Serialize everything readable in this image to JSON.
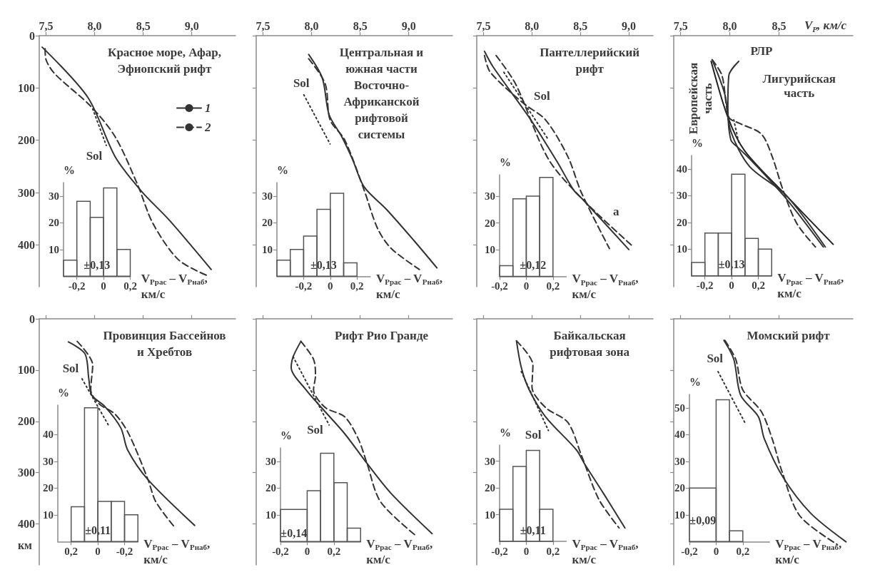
{
  "chart_data": [
    {
      "type": "line",
      "title": "Красное море, Афар,\nЭфиопский рифт",
      "xlim": [
        7.43,
        9.45
      ],
      "xticks": [
        {
          "value": 7.5,
          "label": "7,5"
        },
        {
          "value": 8,
          "label": "8,0"
        },
        {
          "value": 8.5,
          "label": "8,5"
        },
        {
          "value": 9,
          "label": "9,0"
        }
      ],
      "ylim": [
        480,
        0
      ],
      "yticks": [
        0,
        100,
        200,
        300,
        400
      ],
      "legend": "right",
      "series": [
        {
          "name": "1",
          "color": "#333333",
          "line_style": "solid",
          "x": [
            7.46,
            7.93,
            8.21,
            8.48,
            8.77,
            9.2
          ],
          "values": [
            22,
            118,
            231,
            297,
            353,
            447
          ]
        },
        {
          "name": "2",
          "color": "#333333",
          "line_style": "dashed",
          "x": [
            7.49,
            7.5,
            7.59,
            7.96,
            8.21,
            8.44,
            8.6,
            8.86,
            9.15
          ],
          "values": [
            25,
            46,
            73,
            135,
            193,
            284,
            359,
            428,
            458
          ]
        },
        {
          "color": "#333333",
          "line_style": "dotted",
          "x": [
            7.98,
            8.12
          ],
          "values": [
            140,
            210
          ]
        }
      ],
      "annotations": [
        "Sol"
      ]
    },
    {
      "type": "histogram",
      "bins": [
        -0.3,
        -0.2,
        -0.1,
        0,
        0.1,
        0.2
      ],
      "values": [
        6,
        28,
        22,
        33,
        10
      ],
      "color": "#555555",
      "xlim": [
        -0.3,
        0.2
      ],
      "xticks": [
        {
          "value": -0.2,
          "label": "-0,2"
        },
        0,
        {
          "value": 0.2,
          "label": "0,2"
        }
      ],
      "ylim": [
        0,
        35
      ],
      "yticks": [
        10,
        20,
        30
      ],
      "ylabel": "%",
      "xlabel": "V$_{Pрас}$ – V$_{Pнаб}$,\nкм/с",
      "annotations": [
        "±0,13"
      ]
    },
    {
      "type": "line",
      "title": "Центральная и\nюжная части\nВосточно-\nАфриканской\nрифтовой\nсистемы",
      "xlim": [
        7.43,
        9.45
      ],
      "xticks": [
        {
          "value": 7.5,
          "label": "7,5"
        },
        {
          "value": 8,
          "label": "8,0"
        },
        {
          "value": 8.5,
          "label": "8,5"
        },
        {
          "value": 9,
          "label": "9,0"
        }
      ],
      "ylim": [
        480,
        0
      ],
      "yticks": [
        0,
        100,
        200,
        300,
        400
      ],
      "tick_labels": "x",
      "series": [
        {
          "color": "#333333",
          "line_style": "solid",
          "x": [
            7.97,
            8.11,
            8.18,
            8.31,
            8.42,
            8.54,
            8.77,
            9.05,
            9.29
          ],
          "values": [
            36,
            81,
            151,
            193,
            236,
            289,
            332,
            391,
            444
          ]
        },
        {
          "color": "#333333",
          "line_style": "dashed",
          "x": [
            7.97,
            8.14,
            8.19,
            8.34,
            8.54,
            8.68,
            8.82,
            9.11
          ],
          "values": [
            44,
            92,
            161,
            199,
            295,
            369,
            407,
            447
          ]
        },
        {
          "color": "#333333",
          "line_style": "dotted",
          "x": [
            7.92,
            8.19
          ],
          "values": [
            113,
            207
          ]
        }
      ],
      "annotations": [
        "Sol"
      ]
    },
    {
      "type": "histogram",
      "bins": [
        -0.4,
        -0.3,
        -0.2,
        -0.1,
        0,
        0.1,
        0.2
      ],
      "values": [
        6,
        10,
        15,
        25,
        31,
        5
      ],
      "color": "#555555",
      "xlim": [
        -0.4,
        0.3
      ],
      "xticks": [
        {
          "value": -0.2,
          "label": "-0,2"
        },
        0,
        {
          "value": 0.2,
          "label": "0,2"
        }
      ],
      "ylim": [
        0,
        35
      ],
      "yticks": [
        10,
        20,
        30
      ],
      "ylabel": "%",
      "xlabel": "V$_{Pрас}$ – V$_{Pнаб}$,\nкм/с",
      "annotations": [
        "±0,13"
      ]
    },
    {
      "type": "line",
      "title": "Пантеллерийский\nрифт",
      "xlim": [
        7.43,
        9.25
      ],
      "xticks": [
        {
          "value": 7.5,
          "label": "7,5"
        },
        {
          "value": 8,
          "label": "8,0"
        },
        {
          "value": 8.5,
          "label": "8,5"
        },
        {
          "value": 9,
          "label": "9,0"
        }
      ],
      "ylim": [
        480,
        0
      ],
      "yticks": [
        0,
        100,
        200,
        300,
        400
      ],
      "tick_labels": "x",
      "series": [
        {
          "color": "#333333",
          "line_style": "solid",
          "x": [
            7.51,
            7.6,
            7.97,
            8.26,
            8.43,
            8.54,
            9.0
          ],
          "values": [
            30,
            60,
            156,
            241,
            295,
            316,
            409
          ]
        },
        {
          "color": "#333333",
          "line_style": "dashed",
          "x": [
            7.51,
            7.57,
            7.91,
            8.14,
            8.37,
            8.51,
            8.8
          ],
          "values": [
            38,
            70,
            129,
            161,
            231,
            300,
            407
          ]
        },
        {
          "color": "#333333",
          "line_style": "dashed",
          "x": [
            7.63,
            7.83,
            8.17,
            8.54,
            9.03
          ],
          "values": [
            38,
            92,
            236,
            316,
            401
          ]
        },
        {
          "color": "#333333",
          "line_style": "dotted",
          "x": [
            7.71,
            8.17
          ],
          "values": [
            70,
            199
          ]
        }
      ],
      "annotations": [
        "Sol",
        "a"
      ]
    },
    {
      "type": "histogram",
      "bins": [
        -0.2,
        -0.1,
        0,
        0.1,
        0.2
      ],
      "values": [
        4,
        29,
        30,
        37
      ],
      "color": "#555555",
      "xlim": [
        -0.2,
        0.3
      ],
      "xticks": [
        {
          "value": -0.2,
          "label": "-0,2"
        },
        0,
        {
          "value": 0.2,
          "label": "0,2"
        }
      ],
      "ylim": [
        0,
        38
      ],
      "yticks": [
        10,
        20,
        30
      ],
      "ylabel": "%",
      "xlabel": "V$_{Pрас}$ – V$_{Pнаб}$,\nкм/с",
      "annotations": [
        "±0,12"
      ]
    },
    {
      "type": "line",
      "xlabel": "V$_{P}$, км/с",
      "xlim": [
        7.43,
        9.25
      ],
      "xticks": [
        {
          "value": 7.5,
          "label": "7,5"
        },
        {
          "value": 8,
          "label": "8,0"
        },
        {
          "value": 8.5,
          "label": "8,5"
        }
      ],
      "ylim": [
        480,
        0
      ],
      "yticks": [
        0,
        100,
        200,
        300,
        400
      ],
      "tick_labels": "x",
      "series": [
        {
          "color": "#222222",
          "line_style": "solid",
          "x": [
            7.81,
            7.98,
            8.15,
            8.57,
            9.05
          ],
          "values": [
            49,
            156,
            220,
            305,
            399
          ]
        },
        {
          "color": "#333333",
          "line_style": "solid",
          "x": [
            8.09,
            7.99,
            7.98,
            8.01,
            8.09,
            8.23,
            8.57,
            8.95
          ],
          "values": [
            49,
            76,
            135,
            199,
            215,
            241,
            311,
            404
          ]
        },
        {
          "color": "#333333",
          "line_style": "solid",
          "x": [
            7.82,
            7.95,
            8.01,
            8.2,
            8.57,
            8.97
          ],
          "values": [
            46,
            113,
            183,
            250,
            305,
            404
          ]
        },
        {
          "color": "#333333",
          "line_style": "dashed",
          "x": [
            7.82,
            7.92,
            7.99,
            8.09,
            8.32,
            8.43,
            8.54,
            8.68,
            8.87
          ],
          "values": [
            46,
            76,
            156,
            167,
            188,
            231,
            295,
            359,
            404
          ]
        },
        {
          "color": "#333333",
          "line_style": "dotted",
          "x": [
            8.04,
            8.09
          ],
          "values": [
            161,
            204
          ]
        }
      ],
      "annotations": [
        "РЛР",
        "Лигурийская\nчасть",
        "Европейская\nчасть"
      ]
    },
    {
      "type": "histogram",
      "bins": [
        -0.3,
        -0.2,
        -0.1,
        0,
        0.1,
        0.2,
        0.3
      ],
      "values": [
        5,
        16,
        16,
        38,
        14,
        10
      ],
      "color": "#555555",
      "xlim": [
        -0.3,
        0.3
      ],
      "xticks": [
        {
          "value": -0.2,
          "label": "-0,2"
        },
        0,
        {
          "value": 0.2,
          "label": "0,2"
        }
      ],
      "ylim": [
        0,
        45
      ],
      "yticks": [
        10,
        20,
        30,
        40
      ],
      "ylabel": "%",
      "xlabel": "V$_{Pрас}$ – V$_{Pнаб}$,\nкм/с",
      "annotations": [
        "±0,13"
      ]
    },
    {
      "type": "line",
      "title": "Провинция Бассейнов\nи Хребтов",
      "ylabel": "км",
      "xlim": [
        7.43,
        9.45
      ],
      "xticks": [
        7.5,
        8,
        8.5,
        9
      ],
      "ylim": [
        480,
        0
      ],
      "yticks": [
        0,
        100,
        200,
        300,
        400
      ],
      "tick_labels": "y",
      "series": [
        {
          "color": "#333333",
          "line_style": "solid",
          "x": [
            7.73,
            7.9,
            7.94,
            7.97,
            8.1,
            8.27,
            8.34,
            8.55,
            9.03
          ],
          "values": [
            45,
            68,
            117,
            149,
            170,
            213,
            256,
            314,
            403
          ]
        },
        {
          "color": "#333333",
          "line_style": "dashed",
          "x": [
            7.82,
            7.98,
            7.96,
            8.04,
            8.21,
            8.35,
            8.55,
            8.63,
            8.83
          ],
          "values": [
            44,
            90,
            138,
            165,
            186,
            224,
            314,
            357,
            408
          ]
        },
        {
          "color": "#333333",
          "line_style": "dotted",
          "x": [
            7.87,
            8.15
          ],
          "values": [
            117,
            210
          ]
        }
      ],
      "annotations": [
        "Sol"
      ]
    },
    {
      "type": "histogram",
      "bins": [
        -0.3,
        -0.2,
        -0.1,
        0,
        0.1,
        0.2
      ],
      "values": [
        10,
        15,
        15,
        50,
        13
      ],
      "color": "#555555",
      "xlim": [
        0.3,
        -0.3
      ],
      "xticks": [
        {
          "value": 0.2,
          "label": "0,2"
        },
        0,
        {
          "value": -0.2,
          "label": "-0,2"
        }
      ],
      "ylim": [
        0,
        51
      ],
      "yticks": [
        10,
        20,
        30,
        40
      ],
      "ylabel": "%",
      "xlabel": "V$_{Pрас}$ – V$_{Pнаб}$,\nкм/с",
      "annotations": [
        "±0,11"
      ]
    },
    {
      "type": "line",
      "title": "Рифт Рио Гранде",
      "xlim": [
        7.43,
        9.45
      ],
      "xticks": [
        7.5,
        8,
        8.5,
        9
      ],
      "ylim": [
        480,
        0
      ],
      "yticks": [
        0,
        100,
        200,
        300,
        400
      ],
      "tick_labels": false,
      "series": [
        {
          "color": "#333333",
          "line_style": "solid",
          "x": [
            7.89,
            7.81,
            7.79,
            7.94,
            8.11,
            8.34,
            8.57,
            8.82,
            9.24
          ],
          "values": [
            44,
            74,
            95,
            138,
            175,
            224,
            282,
            341,
            419
          ]
        },
        {
          "color": "#333333",
          "line_style": "dashed",
          "x": [
            7.89,
            8.02,
            8.04,
            8.02,
            8.14,
            8.34,
            8.48,
            8.57,
            8.71,
            9.08
          ],
          "values": [
            44,
            79,
            111,
            138,
            173,
            191,
            234,
            282,
            357,
            424
          ]
        },
        {
          "color": "#333333",
          "line_style": "dotted",
          "x": [
            7.81,
            8.18
          ],
          "values": [
            74,
            207
          ]
        }
      ],
      "annotations": [
        "Sol"
      ]
    },
    {
      "type": "histogram",
      "bins": [
        -0.2,
        0,
        0.1,
        0.2,
        0.3,
        0.4
      ],
      "values": [
        12,
        19,
        33,
        22,
        5
      ],
      "color": "#555555",
      "xlim": [
        -0.2,
        0.4
      ],
      "xticks": [
        {
          "value": -0.2,
          "label": "-0,2"
        },
        0,
        {
          "value": 0.2,
          "label": "0,2"
        }
      ],
      "ylim": [
        0,
        35
      ],
      "yticks": [
        10,
        20,
        30
      ],
      "ylabel": "%",
      "xlabel": "V$_{Pрас}$ – V$_{Pнаб}$,\nкм/с",
      "annotations": [
        "±0,14"
      ]
    },
    {
      "type": "line",
      "title": "Байкальская\nрифтовая зона",
      "xlim": [
        7.43,
        9.25
      ],
      "xticks": [
        7.5,
        8,
        8.5,
        9
      ],
      "ylim": [
        480,
        0
      ],
      "yticks": [
        0,
        100,
        200,
        300,
        400
      ],
      "tick_labels": false,
      "series": [
        {
          "color": "#333333",
          "line_style": "solid",
          "x": [
            7.84,
            7.89,
            7.97,
            8.14,
            8.46,
            8.54,
            8.74,
            8.96
          ],
          "values": [
            43,
            95,
            138,
            191,
            256,
            282,
            341,
            408
          ]
        },
        {
          "color": "#333333",
          "line_style": "dashed",
          "x": [
            7.84,
            8.01,
            8.0,
            8.14,
            8.37,
            8.51,
            8.69,
            8.9
          ],
          "values": [
            43,
            90,
            133,
            173,
            202,
            266,
            352,
            408
          ]
        },
        {
          "color": "#333333",
          "line_style": "dotted",
          "x": [
            7.89,
            8.17
          ],
          "values": [
            103,
            218
          ]
        }
      ],
      "annotations": [
        "Sol"
      ]
    },
    {
      "type": "histogram",
      "bins": [
        -0.2,
        -0.1,
        0,
        0.1,
        0.2
      ],
      "values": [
        12,
        28,
        34,
        12
      ],
      "color": "#555555",
      "xlim": [
        -0.2,
        0.3
      ],
      "xticks": [
        {
          "value": -0.2,
          "label": "-0,2"
        },
        0,
        {
          "value": 0.2,
          "label": "0,2"
        }
      ],
      "ylim": [
        0,
        36
      ],
      "yticks": [
        10,
        20,
        30
      ],
      "ylabel": "%",
      "xlabel": "V$_{Pрас}$ – V$_{Pнаб}$,\nкм/с",
      "annotations": [
        "±0,11"
      ]
    },
    {
      "type": "line",
      "title": "Момский рифт",
      "xlim": [
        7.43,
        9.25
      ],
      "xticks": [
        7.5,
        8,
        8.5
      ],
      "ylim": [
        480,
        0
      ],
      "yticks": [
        0,
        100,
        200,
        300,
        400
      ],
      "tick_labels": false,
      "series": [
        {
          "color": "#333333",
          "line_style": "solid",
          "x": [
            7.94,
            8.04,
            8.11,
            8.29,
            8.35,
            8.54,
            8.82,
            9.18
          ],
          "values": [
            42,
            79,
            149,
            191,
            234,
            309,
            379,
            435
          ]
        },
        {
          "color": "#333333",
          "line_style": "dashed",
          "x": [
            7.95,
            8.06,
            8.13,
            8.32,
            8.43,
            8.53,
            8.71,
            9.09
          ],
          "values": [
            42,
            79,
            138,
            181,
            234,
            298,
            384,
            440
          ]
        },
        {
          "color": "#333333",
          "line_style": "dotted",
          "x": [
            7.88,
            8.16
          ],
          "values": [
            103,
            205
          ]
        }
      ],
      "annotations": [
        "Sol"
      ]
    },
    {
      "type": "histogram",
      "bins": [
        -0.2,
        0,
        0.1,
        0.2
      ],
      "values": [
        20,
        53,
        4
      ],
      "color": "#555555",
      "xlim": [
        -0.2,
        0.4
      ],
      "xticks": [
        {
          "value": -0.2,
          "label": "-0,2"
        },
        0,
        {
          "value": 0.2,
          "label": "0,2"
        }
      ],
      "ylim": [
        0,
        55
      ],
      "yticks": [
        10,
        20,
        30,
        40,
        50
      ],
      "ylabel": "%",
      "xlabel": "V$_{Pрас}$ – V$_{Pнаб}$,\nкм/с",
      "annotations": [
        "±0,09"
      ]
    }
  ]
}
